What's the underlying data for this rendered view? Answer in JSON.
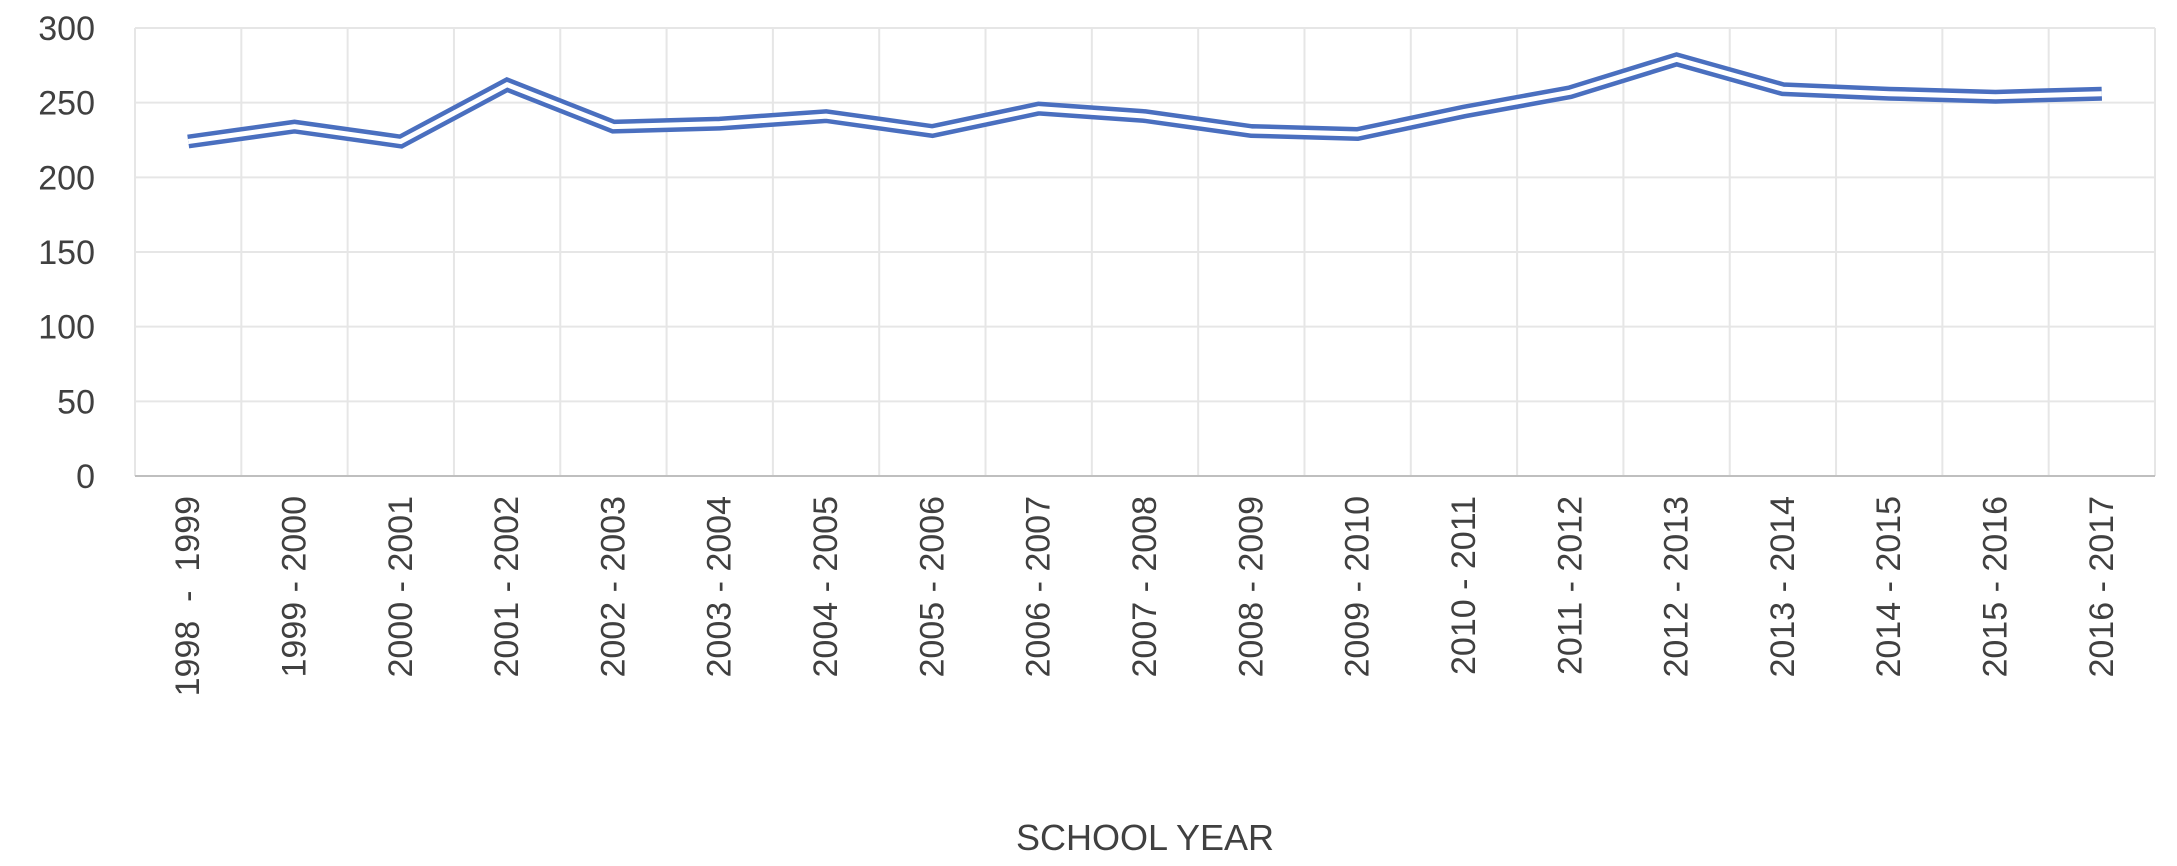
{
  "chart_data": {
    "type": "line",
    "categories": [
      "1998  -  1999",
      "1999 - 2000",
      "2000 - 2001",
      "2001 - 2002",
      "2002 - 2003",
      "2003 - 2004",
      "2004 - 2005",
      "2005 - 2006",
      "2006 - 2007",
      "2007 - 2008",
      "2008 - 2009",
      "2009 - 2010",
      "2010 - 2011",
      "2011 - 2012",
      "2012 - 2013",
      "2013 - 2014",
      "2014 - 2015",
      "2015 - 2016",
      "2016 - 2017"
    ],
    "series": [
      {
        "values": [
          224,
          234,
          224,
          262,
          234,
          236,
          241,
          231,
          246,
          241,
          231,
          229,
          244,
          257,
          279,
          259,
          256,
          254,
          256
        ],
        "color": "#4a6fbf",
        "style": "double-line"
      }
    ],
    "xlabel": "SCHOOL YEAR",
    "ylabel": "",
    "ylim": [
      0,
      300
    ],
    "yticks": [
      0,
      50,
      100,
      150,
      200,
      250,
      300
    ],
    "grid": "both",
    "legend": "none"
  }
}
